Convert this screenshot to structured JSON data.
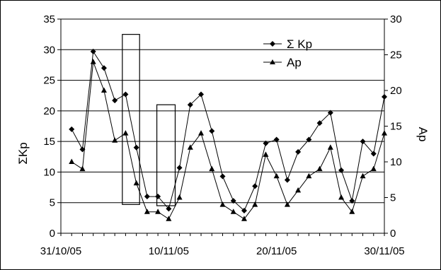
{
  "chart_data": {
    "type": "line",
    "title": "",
    "ylabel_left": "ΣKp",
    "ylabel_right": "Ap",
    "x_tick_labels": [
      "31/10/05",
      "10/11/05",
      "20/11/05",
      "30/11/05"
    ],
    "x_tick_values": [
      0,
      10,
      20,
      30
    ],
    "left_y": {
      "ylim": [
        0,
        35
      ],
      "ticks": [
        "0",
        "5",
        "10",
        "15",
        "20",
        "25",
        "30",
        "35"
      ]
    },
    "right_y": {
      "ylim": [
        0,
        30
      ],
      "ticks": [
        "0",
        "5",
        "10",
        "15",
        "20",
        "25",
        "30"
      ]
    },
    "grid": "horizontal",
    "legend_position": "top-right",
    "x_days": [
      1,
      2,
      3,
      4,
      5,
      6,
      7,
      8,
      9,
      10,
      11,
      12,
      13,
      14,
      15,
      16,
      17,
      18,
      19,
      20,
      21,
      22,
      23,
      24,
      25,
      26,
      27,
      28,
      29,
      30
    ],
    "series": [
      {
        "name": "Σ Kp",
        "marker": "diamond",
        "axis": "left",
        "values": [
          17.0,
          13.7,
          29.7,
          27.0,
          21.7,
          22.7,
          14.0,
          6.0,
          6.0,
          4.0,
          10.7,
          21.0,
          22.7,
          16.7,
          9.3,
          5.3,
          3.7,
          7.7,
          14.7,
          15.3,
          8.7,
          13.3,
          15.3,
          18.0,
          19.7,
          10.3,
          5.3,
          15.0,
          13.0,
          22.3
        ]
      },
      {
        "name": "Ap",
        "marker": "triangle",
        "axis": "right",
        "values": [
          10,
          9,
          24,
          20,
          13,
          14,
          7,
          3,
          3,
          2,
          5,
          12,
          14,
          9,
          4,
          3,
          2,
          4,
          11,
          8,
          4,
          6,
          8,
          9,
          12,
          5,
          3,
          8,
          9,
          14
        ]
      }
    ],
    "highlight_boxes": [
      {
        "x_range": [
          5.7,
          7.3
        ],
        "left_y_range": [
          4.7,
          32.5
        ]
      },
      {
        "x_range": [
          8.9,
          10.6
        ],
        "left_y_range": [
          4.5,
          21.0
        ]
      }
    ],
    "colors": {
      "line": "#000000",
      "grid": "#000000",
      "background": "#ffffff"
    }
  }
}
